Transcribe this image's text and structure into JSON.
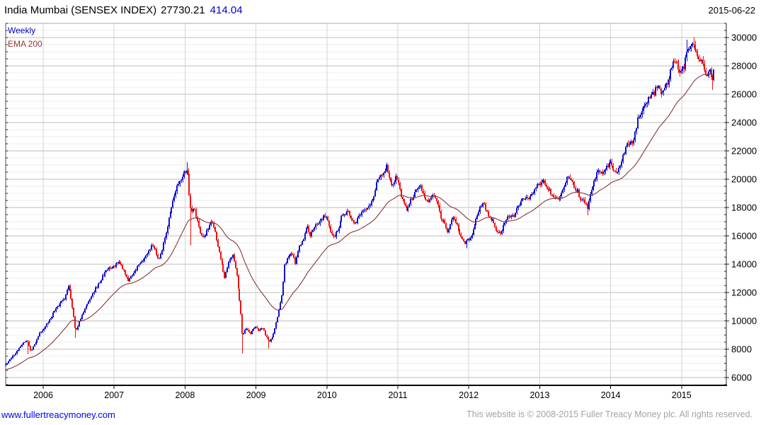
{
  "header": {
    "title_name": "India Mumbai (SENSEX INDEX)",
    "title_last": "27730.21",
    "title_change": "414.04",
    "date": "2015-06-22"
  },
  "legend": {
    "series_label": "Weekly",
    "ema_label": "EMA 200"
  },
  "footer": {
    "link": "www.fullertreacymoney.com",
    "copyright": "This website is © 2008-2015 Fuller Treacy Money plc. All rights reserved."
  },
  "colors": {
    "up": "#1212cc",
    "down": "#ee1212",
    "ema": "#8b3535",
    "grid_minor": "#ececec",
    "grid_major": "#bbbbbb",
    "grid_year": "#d4d4d4",
    "axis": "#222222",
    "axis_bottom": "#000000",
    "border_top": "#aaaaaa",
    "border_left": "#555555"
  },
  "chart_data": {
    "type": "candlestick",
    "interval": "weekly",
    "title": "India Mumbai (SENSEX INDEX)",
    "last_close": 27730.21,
    "last_change": 414.04,
    "as_of": "2015-06-22",
    "overlay": {
      "name": "EMA 200",
      "period_weeks": 41,
      "initial": 6550
    },
    "x_ticks": [
      2006,
      2007,
      2008,
      2009,
      2010,
      2011,
      2012,
      2013,
      2014,
      2015
    ],
    "y_ticks": [
      30000,
      28000,
      26000,
      24000,
      22000,
      20000,
      18000,
      16000,
      14000,
      12000,
      10000,
      8000,
      6000
    ],
    "y_minor_step": 500,
    "xlim": [
      2005.47,
      2015.63
    ],
    "ylim": [
      5500,
      31000
    ],
    "grid": true,
    "legend_position": "top-left",
    "close_anchors": [
      [
        2005.47,
        6900
      ],
      [
        2005.56,
        7450
      ],
      [
        2005.64,
        7900
      ],
      [
        2005.72,
        8500
      ],
      [
        2005.77,
        8650
      ],
      [
        2005.82,
        7900
      ],
      [
        2005.87,
        8300
      ],
      [
        2005.95,
        9100
      ],
      [
        2006.0,
        9400
      ],
      [
        2006.08,
        10000
      ],
      [
        2006.16,
        10650
      ],
      [
        2006.24,
        11300
      ],
      [
        2006.3,
        11600
      ],
      [
        2006.36,
        12500
      ],
      [
        2006.4,
        11400
      ],
      [
        2006.46,
        9250
      ],
      [
        2006.52,
        10100
      ],
      [
        2006.58,
        10750
      ],
      [
        2006.66,
        11600
      ],
      [
        2006.74,
        12300
      ],
      [
        2006.83,
        13100
      ],
      [
        2006.92,
        13700
      ],
      [
        2007.0,
        13900
      ],
      [
        2007.07,
        14200
      ],
      [
        2007.13,
        13600
      ],
      [
        2007.2,
        12850
      ],
      [
        2007.28,
        13400
      ],
      [
        2007.36,
        14000
      ],
      [
        2007.44,
        14600
      ],
      [
        2007.52,
        15300
      ],
      [
        2007.58,
        15000
      ],
      [
        2007.63,
        14250
      ],
      [
        2007.7,
        15500
      ],
      [
        2007.78,
        17400
      ],
      [
        2007.84,
        18800
      ],
      [
        2007.9,
        19600
      ],
      [
        2007.96,
        20200
      ],
      [
        2008.03,
        20850
      ],
      [
        2008.08,
        17800
      ],
      [
        2008.14,
        17800
      ],
      [
        2008.2,
        16400
      ],
      [
        2008.26,
        15750
      ],
      [
        2008.33,
        16600
      ],
      [
        2008.38,
        17150
      ],
      [
        2008.45,
        15600
      ],
      [
        2008.52,
        14000
      ],
      [
        2008.56,
        13000
      ],
      [
        2008.62,
        14300
      ],
      [
        2008.68,
        14650
      ],
      [
        2008.73,
        13250
      ],
      [
        2008.78,
        11000
      ],
      [
        2008.81,
        8900
      ],
      [
        2008.86,
        9500
      ],
      [
        2008.92,
        9000
      ],
      [
        2008.97,
        9650
      ],
      [
        2009.04,
        9350
      ],
      [
        2009.1,
        9450
      ],
      [
        2009.14,
        8900
      ],
      [
        2009.18,
        8550
      ],
      [
        2009.24,
        9000
      ],
      [
        2009.29,
        9900
      ],
      [
        2009.33,
        10900
      ],
      [
        2009.37,
        11900
      ],
      [
        2009.4,
        13900
      ],
      [
        2009.46,
        14550
      ],
      [
        2009.52,
        14800
      ],
      [
        2009.55,
        14000
      ],
      [
        2009.6,
        15100
      ],
      [
        2009.66,
        15700
      ],
      [
        2009.72,
        16700
      ],
      [
        2009.76,
        15900
      ],
      [
        2009.82,
        16650
      ],
      [
        2009.88,
        16900
      ],
      [
        2009.94,
        17250
      ],
      [
        2010.0,
        17500
      ],
      [
        2010.05,
        16350
      ],
      [
        2010.1,
        15950
      ],
      [
        2010.16,
        16500
      ],
      [
        2010.22,
        17550
      ],
      [
        2010.3,
        17650
      ],
      [
        2010.36,
        17050
      ],
      [
        2010.41,
        16900
      ],
      [
        2010.48,
        17600
      ],
      [
        2010.54,
        17900
      ],
      [
        2010.6,
        18150
      ],
      [
        2010.66,
        18800
      ],
      [
        2010.72,
        19950
      ],
      [
        2010.78,
        20250
      ],
      [
        2010.84,
        20900
      ],
      [
        2010.88,
        19900
      ],
      [
        2010.93,
        19550
      ],
      [
        2010.98,
        20300
      ],
      [
        2011.04,
        19000
      ],
      [
        2011.09,
        18300
      ],
      [
        2011.13,
        17850
      ],
      [
        2011.19,
        18550
      ],
      [
        2011.26,
        19250
      ],
      [
        2011.31,
        19600
      ],
      [
        2011.38,
        18600
      ],
      [
        2011.44,
        18350
      ],
      [
        2011.5,
        18850
      ],
      [
        2011.56,
        18400
      ],
      [
        2011.61,
        17100
      ],
      [
        2011.65,
        16950
      ],
      [
        2011.7,
        16200
      ],
      [
        2011.75,
        17050
      ],
      [
        2011.8,
        17300
      ],
      [
        2011.85,
        16400
      ],
      [
        2011.89,
        15950
      ],
      [
        2011.95,
        15500
      ],
      [
        2012.0,
        15750
      ],
      [
        2012.05,
        16150
      ],
      [
        2012.1,
        17200
      ],
      [
        2012.16,
        18000
      ],
      [
        2012.21,
        18300
      ],
      [
        2012.28,
        17350
      ],
      [
        2012.33,
        17100
      ],
      [
        2012.4,
        16200
      ],
      [
        2012.46,
        16300
      ],
      [
        2012.52,
        17300
      ],
      [
        2012.58,
        17200
      ],
      [
        2012.64,
        17450
      ],
      [
        2012.7,
        18100
      ],
      [
        2012.76,
        18750
      ],
      [
        2012.82,
        18650
      ],
      [
        2012.88,
        18800
      ],
      [
        2012.94,
        19350
      ],
      [
        2013.0,
        19700
      ],
      [
        2013.05,
        19900
      ],
      [
        2013.1,
        19500
      ],
      [
        2013.16,
        18950
      ],
      [
        2013.22,
        18750
      ],
      [
        2013.27,
        18550
      ],
      [
        2013.32,
        19200
      ],
      [
        2013.37,
        19900
      ],
      [
        2013.42,
        20250
      ],
      [
        2013.48,
        19400
      ],
      [
        2013.53,
        19250
      ],
      [
        2013.58,
        18600
      ],
      [
        2013.63,
        18350
      ],
      [
        2013.67,
        17950
      ],
      [
        2013.72,
        19000
      ],
      [
        2013.77,
        19900
      ],
      [
        2013.82,
        20650
      ],
      [
        2013.87,
        20450
      ],
      [
        2013.93,
        20750
      ],
      [
        2014.0,
        21150
      ],
      [
        2014.05,
        20550
      ],
      [
        2014.1,
        20450
      ],
      [
        2014.16,
        21400
      ],
      [
        2014.22,
        22350
      ],
      [
        2014.28,
        22450
      ],
      [
        2014.33,
        22950
      ],
      [
        2014.38,
        24150
      ],
      [
        2014.44,
        24800
      ],
      [
        2014.5,
        25450
      ],
      [
        2014.56,
        25900
      ],
      [
        2014.61,
        26100
      ],
      [
        2014.66,
        26650
      ],
      [
        2014.7,
        26000
      ],
      [
        2014.75,
        26450
      ],
      [
        2014.81,
        26850
      ],
      [
        2014.86,
        28050
      ],
      [
        2014.92,
        28350
      ],
      [
        2014.97,
        27550
      ],
      [
        2015.03,
        27900
      ],
      [
        2015.08,
        29200
      ],
      [
        2015.13,
        29350
      ],
      [
        2015.17,
        29450
      ],
      [
        2015.22,
        28800
      ],
      [
        2015.27,
        28450
      ],
      [
        2015.31,
        27950
      ],
      [
        2015.35,
        27250
      ],
      [
        2015.39,
        27650
      ],
      [
        2015.42,
        27350
      ],
      [
        2015.45,
        26750
      ],
      [
        2015.47,
        27730.21
      ]
    ],
    "wick_extremes": [
      {
        "t": 2005.79,
        "low": 7650
      },
      {
        "t": 2006.45,
        "low": 8799
      },
      {
        "t": 2008.03,
        "high": 21206
      },
      {
        "t": 2008.08,
        "low": 15332
      },
      {
        "t": 2008.81,
        "low": 7697
      },
      {
        "t": 2009.18,
        "low": 8047
      },
      {
        "t": 2010.84,
        "high": 21109
      },
      {
        "t": 2011.96,
        "low": 15135
      },
      {
        "t": 2013.67,
        "low": 17449
      },
      {
        "t": 2015.08,
        "high": 29844
      },
      {
        "t": 2015.17,
        "high": 30025
      },
      {
        "t": 2015.44,
        "low": 26307
      }
    ]
  }
}
